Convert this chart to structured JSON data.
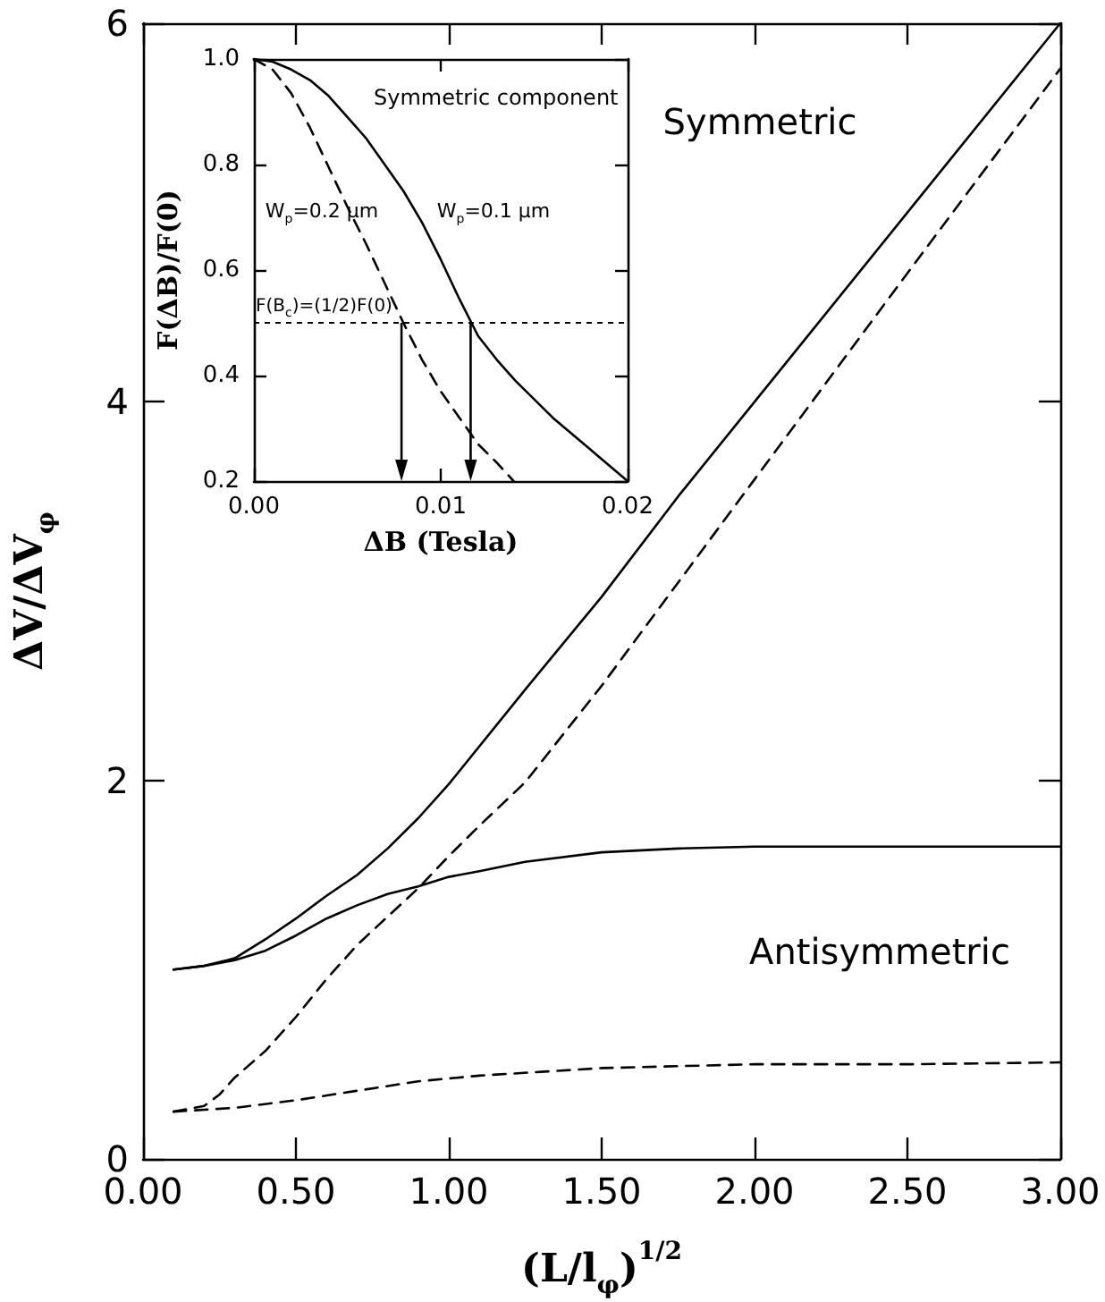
{
  "chart_data": [
    {
      "type": "line",
      "xlabel": "(L/l$_{φ}$)$^{1/2}$",
      "ylabel": "ΔV/ΔV$_{φ}$",
      "xlim": [
        0,
        3
      ],
      "ylim": [
        0,
        6
      ],
      "xticks": [
        {
          "value": 0,
          "label": "0.00"
        },
        {
          "value": 0.5,
          "label": "0.50"
        },
        {
          "value": 1,
          "label": "1.00"
        },
        {
          "value": 1.5,
          "label": "1.50"
        },
        {
          "value": 2,
          "label": "2.00"
        },
        {
          "value": 2.5,
          "label": "2.50"
        },
        {
          "value": 3,
          "label": "3.00"
        }
      ],
      "yticks": [
        0,
        2,
        4,
        6
      ],
      "series": [
        {
          "color": "#000000",
          "line_style": "solid",
          "x": [
            0.1,
            0.2,
            0.3,
            0.4,
            0.5,
            0.6,
            0.7,
            0.8,
            0.9,
            1.0,
            1.25,
            1.5,
            1.75,
            2.0,
            2.5,
            3.0
          ],
          "values": [
            1.0,
            1.02,
            1.06,
            1.16,
            1.27,
            1.39,
            1.5,
            1.64,
            1.8,
            1.98,
            2.48,
            2.97,
            3.5,
            4.0,
            5.0,
            6.0
          ]
        },
        {
          "color": "#000000",
          "line_style": "dashed",
          "x": [
            0.1,
            0.2,
            0.25,
            0.3,
            0.4,
            0.5,
            0.6,
            0.7,
            0.8,
            0.9,
            1.0,
            1.1,
            1.25,
            1.5,
            2.0,
            2.5,
            3.0
          ],
          "values": [
            0.25,
            0.28,
            0.34,
            0.43,
            0.57,
            0.75,
            0.95,
            1.13,
            1.28,
            1.43,
            1.6,
            1.76,
            1.99,
            2.5,
            3.59,
            4.68,
            5.76
          ]
        },
        {
          "color": "#000000",
          "line_style": "solid",
          "x": [
            0.1,
            0.2,
            0.3,
            0.4,
            0.5,
            0.6,
            0.7,
            0.8,
            0.9,
            1.0,
            1.1,
            1.25,
            1.5,
            1.75,
            2.0,
            2.5,
            3.0
          ],
          "values": [
            1.0,
            1.02,
            1.05,
            1.1,
            1.18,
            1.27,
            1.34,
            1.4,
            1.44,
            1.49,
            1.52,
            1.57,
            1.62,
            1.64,
            1.65,
            1.65,
            1.65
          ]
        },
        {
          "color": "#000000",
          "line_style": "dashed",
          "x": [
            0.1,
            0.3,
            0.5,
            0.7,
            0.9,
            1.1,
            1.3,
            1.5,
            2.0,
            2.5,
            3.0
          ],
          "values": [
            0.25,
            0.27,
            0.31,
            0.36,
            0.41,
            0.44,
            0.46,
            0.48,
            0.5,
            0.5,
            0.51
          ]
        }
      ],
      "annotations": [
        "Symmetric",
        "Antisymmetric"
      ],
      "marker": "none"
    },
    {
      "type": "line",
      "title": "Symmetric component",
      "xlabel": "ΔB (Tesla)",
      "ylabel": "F(ΔB)/F(0)",
      "xlim": [
        0,
        0.02
      ],
      "ylim": [
        0.2,
        1.0
      ],
      "xticks": [
        {
          "value": 0,
          "label": "0.00"
        },
        0.01,
        0.02
      ],
      "yticks": [
        0.2,
        0.4,
        0.6,
        0.8,
        {
          "value": 1.0,
          "label": "1.0"
        }
      ],
      "series": [
        {
          "name": "W$_{p}$=0.1 μm",
          "color": "#000000",
          "line_style": "solid",
          "x": [
            0,
            0.001,
            0.002,
            0.003,
            0.004,
            0.005,
            0.006,
            0.007,
            0.008,
            0.009,
            0.01,
            0.011,
            0.012,
            0.013,
            0.014,
            0.016,
            0.018,
            0.02
          ],
          "values": [
            1.0,
            0.995,
            0.98,
            0.96,
            0.93,
            0.89,
            0.85,
            0.8,
            0.75,
            0.69,
            0.62,
            0.545,
            0.475,
            0.43,
            0.39,
            0.32,
            0.26,
            0.2
          ]
        },
        {
          "name": "W$_{p}$=0.2 μm",
          "color": "#000000",
          "line_style": "dashed",
          "x": [
            0,
            0.001,
            0.002,
            0.003,
            0.004,
            0.005,
            0.006,
            0.007,
            0.008,
            0.009,
            0.01,
            0.011,
            0.012,
            0.013,
            0.0139
          ],
          "values": [
            1.0,
            0.98,
            0.935,
            0.87,
            0.795,
            0.72,
            0.65,
            0.575,
            0.5,
            0.43,
            0.37,
            0.32,
            0.27,
            0.235,
            0.2
          ]
        }
      ],
      "ref_lines": [
        {
          "axis": "y",
          "value": 0.5,
          "label": "F(B$_{c}$)=(1/2)F(0)",
          "line_style": "dotted"
        },
        {
          "axis": "x",
          "value": 0.0079,
          "line_style": "solid"
        },
        {
          "axis": "x",
          "value": 0.0116,
          "line_style": "solid"
        }
      ],
      "marker": "none"
    }
  ]
}
